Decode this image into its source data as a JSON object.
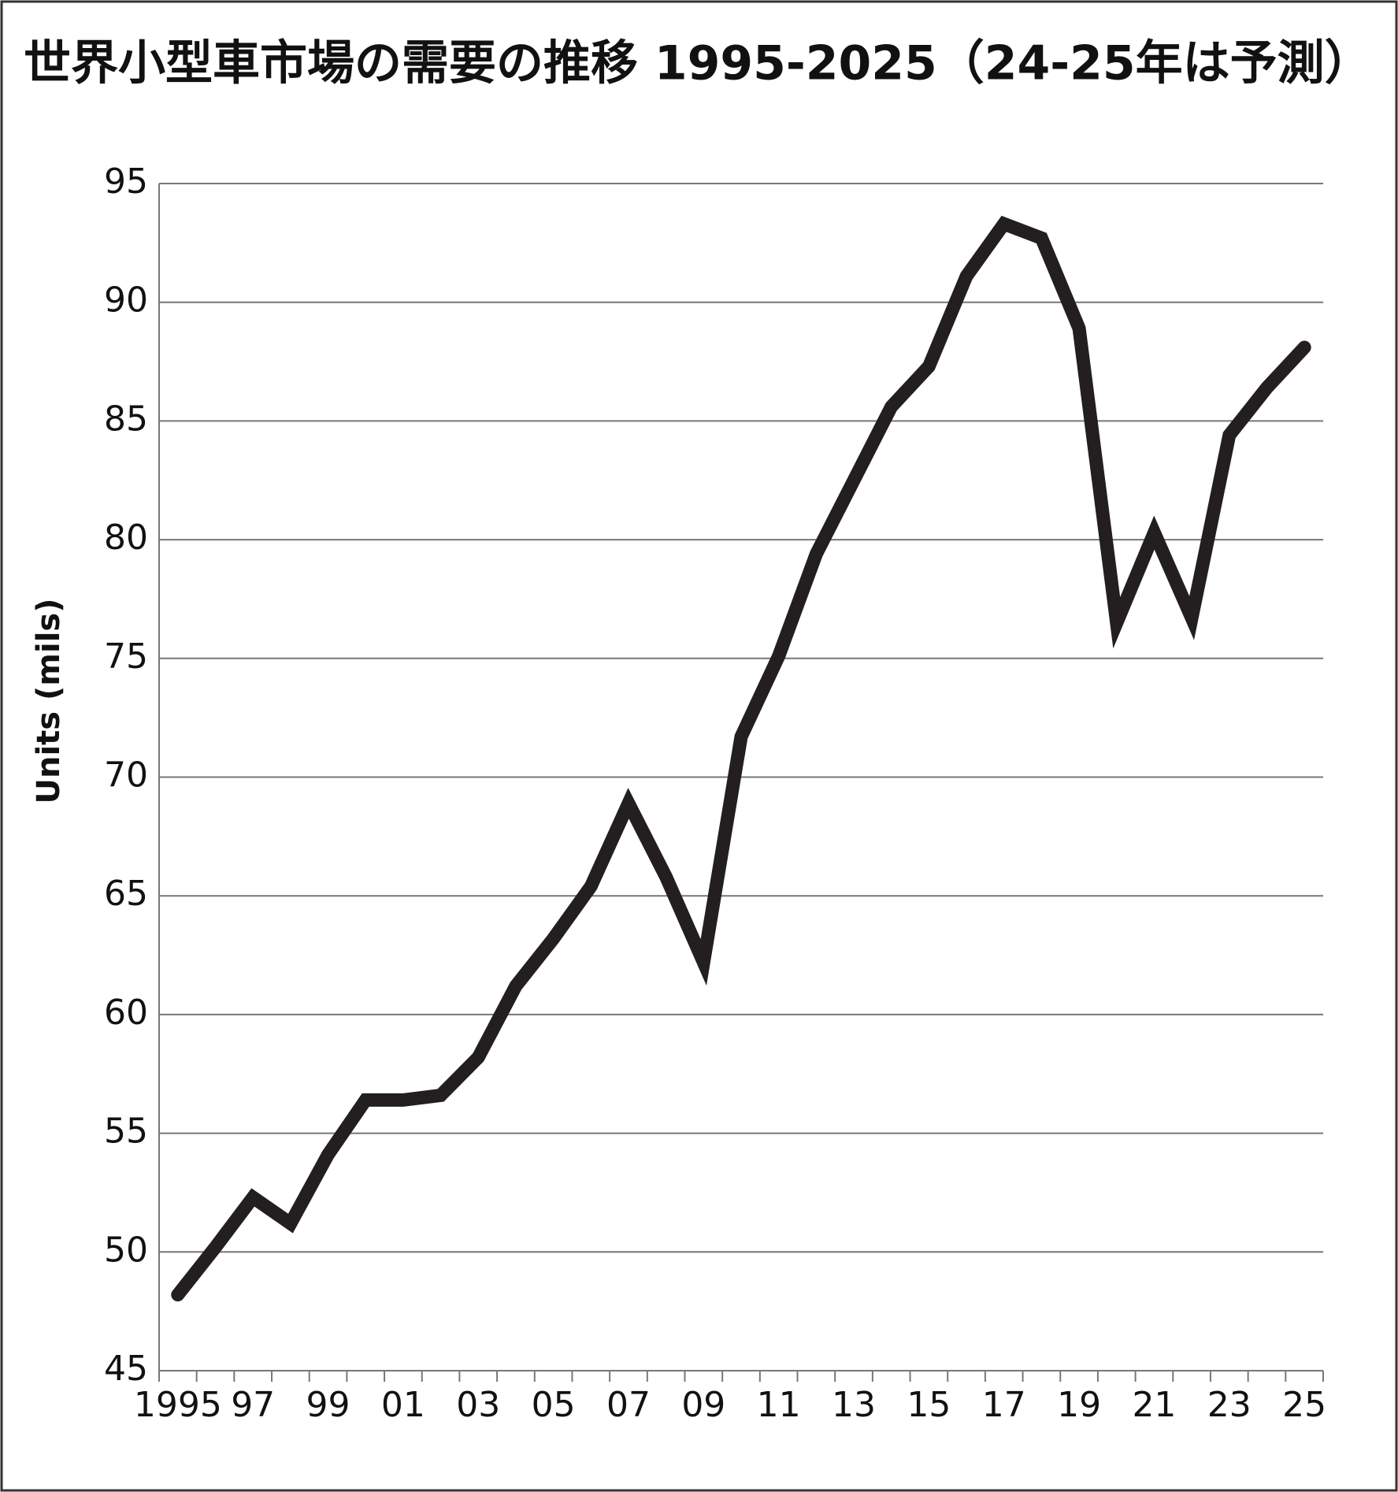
{
  "chart_data": {
    "type": "line",
    "title": "世界小型車市場の需要の推移  1995-2025（24-25年は予測）",
    "y_label": "Units (mils)",
    "categories": [
      "1995",
      null,
      "97",
      null,
      "99",
      null,
      "01",
      null,
      "03",
      null,
      "05",
      null,
      "07",
      null,
      "09",
      null,
      "11",
      null,
      "13",
      null,
      "15",
      null,
      "17",
      null,
      "19",
      null,
      "21",
      null,
      "23",
      null,
      "25"
    ],
    "values": [
      48.2,
      50.2,
      52.3,
      51.2,
      54.1,
      56.4,
      56.4,
      56.6,
      58.2,
      61.2,
      63.2,
      65.4,
      68.9,
      65.8,
      62.2,
      71.7,
      75.1,
      79.4,
      82.5,
      85.6,
      87.3,
      91.1,
      93.3,
      92.7,
      88.9,
      76.5,
      80.3,
      76.7,
      84.4,
      86.4,
      88.1
    ],
    "color": "#231f20",
    "ylim": [
      45,
      95
    ],
    "yticks": [
      45,
      50,
      55,
      60,
      65,
      70,
      75,
      80,
      85,
      90,
      95
    ],
    "grid": true
  }
}
